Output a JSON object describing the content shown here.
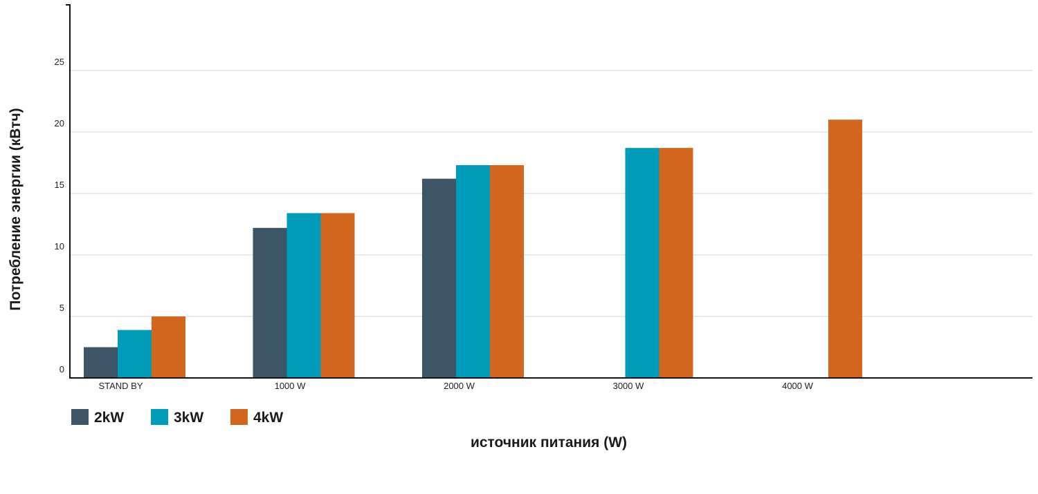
{
  "chart_data": {
    "type": "bar",
    "title": "",
    "xlabel": "источник питания (W)",
    "ylabel": "Потребление энергии (кВтч)",
    "categories": [
      "STAND BY",
      "1000 W",
      "2000 W",
      "3000 W",
      "4000 W"
    ],
    "series": [
      {
        "name": "2kW",
        "color": "#3c5567",
        "values": [
          2.5,
          12.2,
          16.2,
          null,
          null
        ]
      },
      {
        "name": "3kW",
        "color": "#009bbb",
        "values": [
          3.9,
          13.4,
          17.3,
          18.7,
          null
        ]
      },
      {
        "name": "4kW",
        "color": "#d2661e",
        "values": [
          5.0,
          13.4,
          17.3,
          18.7,
          21.0
        ]
      }
    ],
    "ylim": [
      0,
      30
    ],
    "yticks": [
      0,
      5,
      10,
      15,
      20,
      25
    ],
    "grid": true,
    "legend": "bottom-left"
  }
}
